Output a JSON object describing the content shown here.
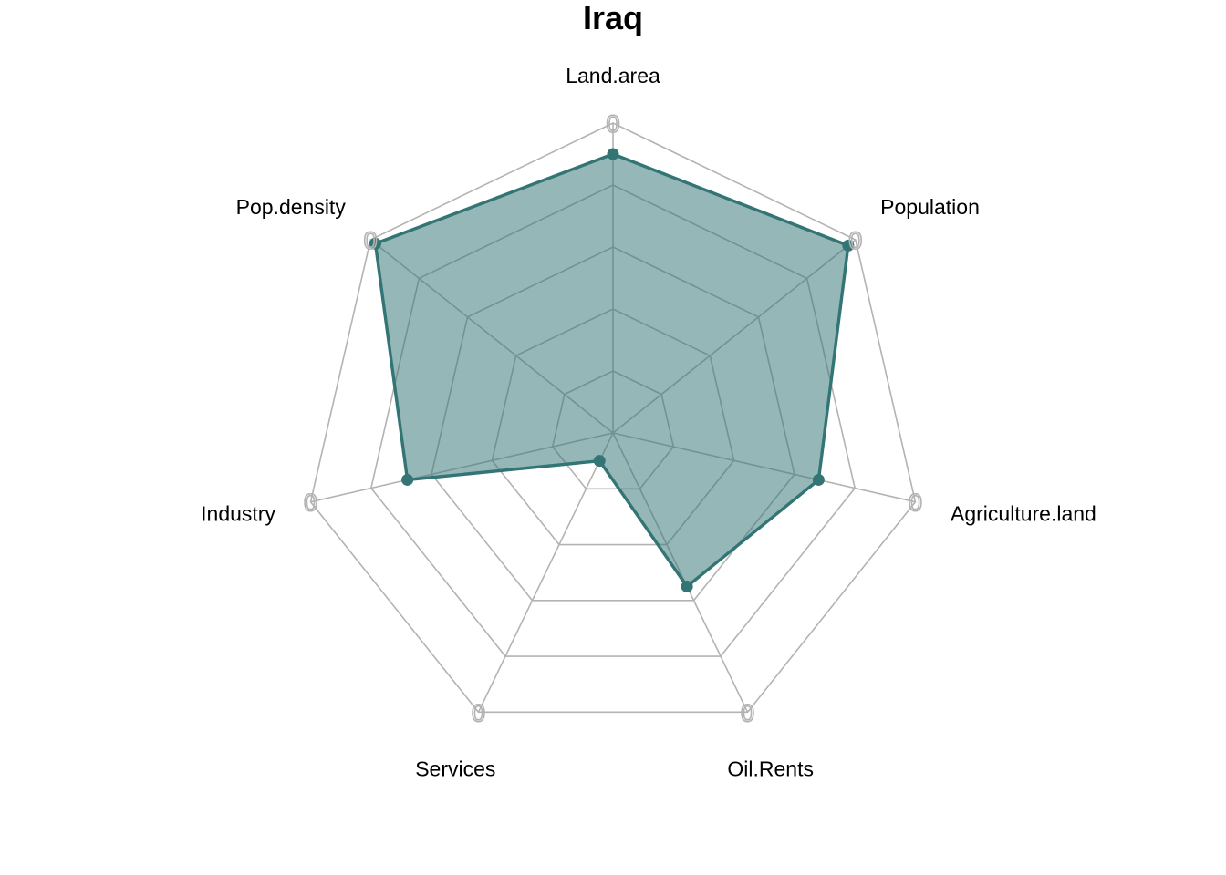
{
  "chart_data": {
    "type": "radar",
    "title": "Iraq",
    "axes": [
      "Land.area",
      "Population",
      "Agriculture.land",
      "Oil.Rents",
      "Services",
      "Industry",
      "Pop.density"
    ],
    "series": [
      {
        "name": "",
        "values": [
          0.9,
          0.97,
          0.68,
          0.55,
          0.1,
          0.68,
          0.98
        ]
      }
    ],
    "rlim": [
      0,
      1
    ],
    "grid_levels": 5,
    "grid": true,
    "axis_tick_label": "0",
    "colors": {
      "series_line": "#337575",
      "series_fill": "#337575",
      "series_fill_opacity": 0.52,
      "grid": "#b3b3b3",
      "grid_inside_fill": "#7a9898"
    }
  }
}
